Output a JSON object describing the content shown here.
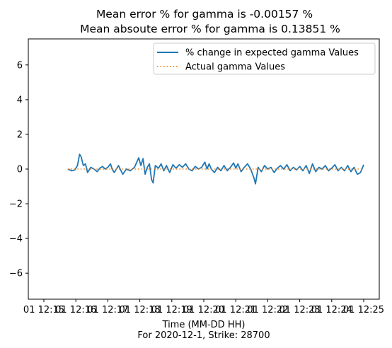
{
  "chart_data": {
    "type": "line",
    "title": [
      "Mean error % for gamma is -0.00157 %",
      "Mean absoute error % for gamma is 0.13851 %"
    ],
    "xlabel": "Time (MM-DD HH)",
    "xlabel_sub": "For 2020-12-1, Strike: 28700",
    "ylabel": "",
    "ylim": [
      -7.5,
      7.5
    ],
    "yticks": [
      -6,
      -4,
      -2,
      0,
      2,
      4,
      6
    ],
    "yticklabels": [
      "−6",
      "−4",
      "−2",
      "0",
      "2",
      "4",
      "6"
    ],
    "xlim": [
      "2020-12-01 12:15:00",
      "2020-12-01 12:25:00"
    ],
    "xtick_values": [
      "12-01 12:15",
      "12-01 12:16",
      "12-01 12:17",
      "12-01 12:18",
      "12-01 12:19",
      "12-01 12:20",
      "12-01 12:21",
      "12-01 12:22",
      "12-01 12:23",
      "12-01 12:24",
      "12-01 12:25"
    ],
    "xticklabels": [
      "01 12:15",
      "01 12:16",
      "01 12:17",
      "01 12:18",
      "01 12:19",
      "01 12:20",
      "01 12:21",
      "01 12:22",
      "01 12:23",
      "01 12:24",
      "01 12:25"
    ],
    "grid": false,
    "legend_position": "upper right",
    "series": [
      {
        "name": "% change in expected gamma Values",
        "color": "#1f77b4",
        "linestyle": "solid",
        "points": [
          [
            "12:15:45",
            0.0
          ],
          [
            "12:15:52",
            -0.1
          ],
          [
            "12:15:58",
            -0.05
          ],
          [
            "12:16:03",
            0.2
          ],
          [
            "12:16:07",
            0.85
          ],
          [
            "12:16:10",
            0.7
          ],
          [
            "12:16:14",
            0.2
          ],
          [
            "12:16:18",
            0.3
          ],
          [
            "12:16:22",
            -0.2
          ],
          [
            "12:16:28",
            0.1
          ],
          [
            "12:16:34",
            0.0
          ],
          [
            "12:16:40",
            -0.15
          ],
          [
            "12:16:45",
            0.05
          ],
          [
            "12:16:50",
            0.15
          ],
          [
            "12:16:55",
            0.0
          ],
          [
            "12:17:00",
            0.1
          ],
          [
            "12:17:05",
            0.3
          ],
          [
            "12:17:08",
            0.0
          ],
          [
            "12:17:12",
            -0.2
          ],
          [
            "12:17:20",
            0.2
          ],
          [
            "12:17:28",
            -0.3
          ],
          [
            "12:17:35",
            0.0
          ],
          [
            "12:17:42",
            -0.1
          ],
          [
            "12:17:50",
            0.1
          ],
          [
            "12:17:58",
            0.65
          ],
          [
            "12:18:02",
            0.2
          ],
          [
            "12:18:06",
            0.6
          ],
          [
            "12:18:10",
            -0.3
          ],
          [
            "12:18:14",
            0.1
          ],
          [
            "12:18:18",
            0.3
          ],
          [
            "12:18:22",
            -0.6
          ],
          [
            "12:18:25",
            -0.8
          ],
          [
            "12:18:29",
            0.2
          ],
          [
            "12:18:35",
            0.05
          ],
          [
            "12:18:40",
            0.3
          ],
          [
            "12:18:45",
            -0.1
          ],
          [
            "12:18:50",
            0.2
          ],
          [
            "12:18:56",
            -0.2
          ],
          [
            "12:19:02",
            0.25
          ],
          [
            "12:19:08",
            0.05
          ],
          [
            "12:19:14",
            0.25
          ],
          [
            "12:19:20",
            0.1
          ],
          [
            "12:19:26",
            0.3
          ],
          [
            "12:19:32",
            0.0
          ],
          [
            "12:19:38",
            -0.1
          ],
          [
            "12:19:44",
            0.15
          ],
          [
            "12:19:50",
            0.0
          ],
          [
            "12:19:56",
            0.1
          ],
          [
            "12:20:02",
            0.4
          ],
          [
            "12:20:06",
            0.0
          ],
          [
            "12:20:10",
            0.3
          ],
          [
            "12:20:14",
            0.0
          ],
          [
            "12:20:20",
            -0.2
          ],
          [
            "12:20:26",
            0.1
          ],
          [
            "12:20:32",
            -0.1
          ],
          [
            "12:20:38",
            0.2
          ],
          [
            "12:20:44",
            -0.1
          ],
          [
            "12:20:50",
            0.1
          ],
          [
            "12:20:56",
            0.35
          ],
          [
            "12:21:00",
            0.05
          ],
          [
            "12:21:04",
            0.3
          ],
          [
            "12:21:10",
            -0.15
          ],
          [
            "12:21:16",
            0.1
          ],
          [
            "12:21:22",
            0.3
          ],
          [
            "12:21:28",
            0.0
          ],
          [
            "12:21:34",
            -0.5
          ],
          [
            "12:21:37",
            -0.85
          ],
          [
            "12:21:42",
            0.1
          ],
          [
            "12:21:48",
            -0.15
          ],
          [
            "12:21:54",
            0.2
          ],
          [
            "12:22:00",
            0.0
          ],
          [
            "12:22:06",
            0.1
          ],
          [
            "12:22:12",
            -0.2
          ],
          [
            "12:22:18",
            0.05
          ],
          [
            "12:22:24",
            0.2
          ],
          [
            "12:22:30",
            0.0
          ],
          [
            "12:22:36",
            0.25
          ],
          [
            "12:22:42",
            -0.1
          ],
          [
            "12:22:48",
            0.1
          ],
          [
            "12:22:54",
            -0.05
          ],
          [
            "12:23:00",
            0.15
          ],
          [
            "12:23:06",
            -0.1
          ],
          [
            "12:23:12",
            0.2
          ],
          [
            "12:23:18",
            -0.25
          ],
          [
            "12:23:24",
            0.3
          ],
          [
            "12:23:30",
            -0.15
          ],
          [
            "12:23:36",
            0.1
          ],
          [
            "12:23:42",
            0.0
          ],
          [
            "12:23:48",
            0.2
          ],
          [
            "12:23:54",
            -0.1
          ],
          [
            "12:24:00",
            0.05
          ],
          [
            "12:24:06",
            0.25
          ],
          [
            "12:24:12",
            -0.1
          ],
          [
            "12:24:18",
            0.1
          ],
          [
            "12:24:24",
            -0.1
          ],
          [
            "12:24:30",
            0.2
          ],
          [
            "12:24:36",
            -0.15
          ],
          [
            "12:24:42",
            0.1
          ],
          [
            "12:24:48",
            -0.3
          ],
          [
            "12:24:54",
            -0.2
          ],
          [
            "12:25:00",
            0.25
          ]
        ]
      },
      {
        "name": "Actual gamma Values",
        "color": "#ff7f0e",
        "linestyle": "dotted",
        "points": [
          [
            "12:15:45",
            0.0
          ],
          [
            "12:16:30",
            0.0
          ],
          [
            "12:17:30",
            0.0
          ],
          [
            "12:18:30",
            0.0
          ],
          [
            "12:19:30",
            0.0
          ],
          [
            "12:20:30",
            0.0
          ],
          [
            "12:21:30",
            0.0
          ],
          [
            "12:22:30",
            0.0
          ],
          [
            "12:23:30",
            0.0
          ],
          [
            "12:24:30",
            0.0
          ],
          [
            "12:25:00",
            0.0
          ]
        ]
      }
    ]
  }
}
